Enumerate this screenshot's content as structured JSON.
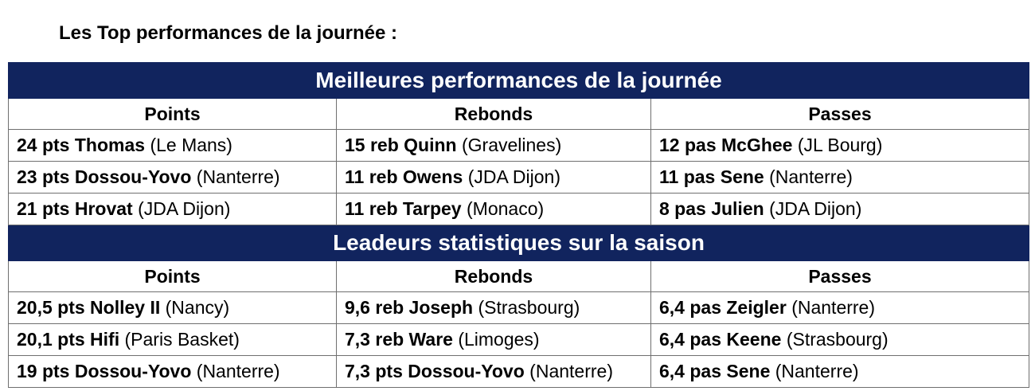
{
  "intro_title": "Les Top performances de la journée :",
  "colors": {
    "banner_bg": "#11245e",
    "banner_text": "#ffffff",
    "border": "#6f6f6f"
  },
  "sections": [
    {
      "title": "Meilleures performances de la journée",
      "columns": [
        "Points",
        "Rebonds",
        "Passes"
      ],
      "rows": [
        [
          {
            "stat": "24 pts Thomas",
            "team": "(Le Mans)"
          },
          {
            "stat": "15 reb Quinn",
            "team": "(Gravelines)"
          },
          {
            "stat": "12 pas McGhee",
            "team": "(JL Bourg)"
          }
        ],
        [
          {
            "stat": "23 pts Dossou-Yovo",
            "team": "(Nanterre)"
          },
          {
            "stat": "11 reb Owens",
            "team": "(JDA Dijon)"
          },
          {
            "stat": "11 pas Sene",
            "team": "(Nanterre)"
          }
        ],
        [
          {
            "stat": "21 pts Hrovat",
            "team": "(JDA Dijon)"
          },
          {
            "stat": "11 reb Tarpey",
            "team": "(Monaco)"
          },
          {
            "stat": "8 pas Julien",
            "team": "(JDA Dijon)"
          }
        ]
      ]
    },
    {
      "title": "Leadeurs statistiques sur la saison",
      "columns": [
        "Points",
        "Rebonds",
        "Passes"
      ],
      "rows": [
        [
          {
            "stat": "20,5 pts Nolley II",
            "team": "(Nancy)"
          },
          {
            "stat": "9,6 reb Joseph",
            "team": "(Strasbourg)"
          },
          {
            "stat": "6,4 pas Zeigler",
            "team": "(Nanterre)"
          }
        ],
        [
          {
            "stat": "20,1 pts Hifi",
            "team": "(Paris Basket)"
          },
          {
            "stat": "7,3 reb Ware",
            "team": "(Limoges)"
          },
          {
            "stat": "6,4 pas Keene",
            "team": "(Strasbourg)"
          }
        ],
        [
          {
            "stat": "19 pts Dossou-Yovo",
            "team": "(Nanterre)"
          },
          {
            "stat": "7,3 pts Dossou-Yovo",
            "team": "(Nanterre)"
          },
          {
            "stat": "6,4 pas Sene",
            "team": "(Nanterre)"
          }
        ]
      ]
    }
  ]
}
